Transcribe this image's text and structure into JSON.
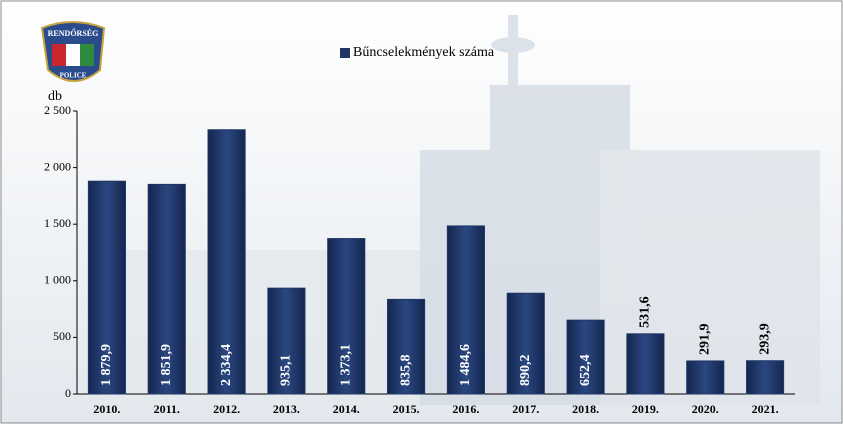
{
  "logo": {
    "top": "RENDŐRSÉG",
    "bottom": "POLICE"
  },
  "chart_data": {
    "type": "bar",
    "y_label": "db",
    "categories": [
      "2010.",
      "2011.",
      "2012.",
      "2013.",
      "2014.",
      "2015.",
      "2016.",
      "2017.",
      "2018.",
      "2019.",
      "2020.",
      "2021."
    ],
    "series": [
      {
        "name": "Bűncselekmények száma",
        "color": "#1f3565",
        "values": [
          1879.9,
          1851.9,
          2334.4,
          935.1,
          1373.1,
          835.8,
          1484.6,
          890.2,
          652.4,
          531.6,
          291.9,
          293.9
        ],
        "value_labels": [
          "1 879,9",
          "1 851,9",
          "2 334,4",
          "935,1",
          "1 373,1",
          "835,8",
          "1 484,6",
          "890,2",
          "652,4",
          "531,6",
          "291,9",
          "293,9"
        ]
      }
    ],
    "ylim": [
      0,
      2500
    ],
    "yticks": [
      0,
      500,
      {
        "value": 1000,
        "label": "1 000"
      },
      {
        "value": 1500,
        "label": "1 500"
      },
      {
        "value": 2000,
        "label": "2 000"
      },
      {
        "value": 2500,
        "label": "2 500"
      }
    ],
    "grid": false,
    "legend": "top"
  }
}
